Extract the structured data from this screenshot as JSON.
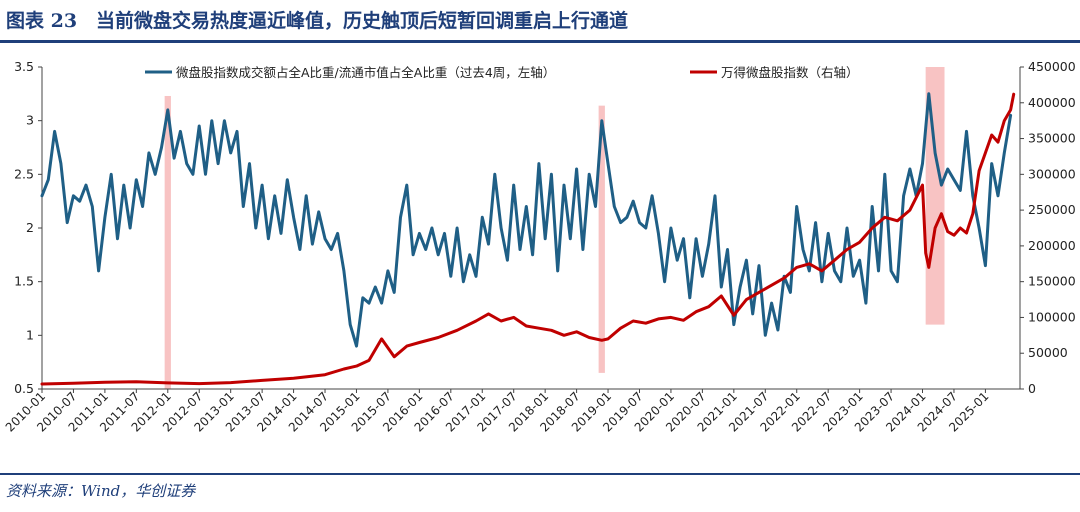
{
  "header": {
    "title": "图表 23　当前微盘交易热度逼近峰值，历史触顶后短暂回调重启上行通道"
  },
  "footer": {
    "source": "资料来源：Wind，华创证券"
  },
  "chart_data": {
    "type": "line",
    "left_axis": {
      "min": 0.5,
      "max": 3.5,
      "ticks": [
        "0.5",
        "1",
        "1.5",
        "2",
        "2.5",
        "3",
        "3.5"
      ]
    },
    "right_axis": {
      "min": 0,
      "max": 450000,
      "ticks": [
        "0",
        "50000",
        "100000",
        "150000",
        "200000",
        "250000",
        "300000",
        "350000",
        "400000",
        "450000"
      ]
    },
    "x_ticks": [
      "2010-01",
      "2010-07",
      "2011-01",
      "2011-07",
      "2012-01",
      "2012-07",
      "2013-01",
      "2013-07",
      "2014-01",
      "2014-07",
      "2015-01",
      "2015-07",
      "2016-01",
      "2016-07",
      "2017-01",
      "2017-07",
      "2018-01",
      "2018-07",
      "2019-01",
      "2019-07",
      "2020-01",
      "2020-07",
      "2021-01",
      "2021-07",
      "2022-01",
      "2022-07",
      "2023-01",
      "2023-07",
      "2024-01",
      "2024-07",
      "2025-01"
    ],
    "series": [
      {
        "name": "微盘股指数成交额占全A比重/流通市值占全A比重（过去4周，左轴）",
        "axis": "left",
        "color": "#1f5f86",
        "points": [
          [
            2010.0,
            2.3
          ],
          [
            2010.1,
            2.45
          ],
          [
            2010.2,
            2.9
          ],
          [
            2010.3,
            2.6
          ],
          [
            2010.4,
            2.05
          ],
          [
            2010.5,
            2.3
          ],
          [
            2010.6,
            2.25
          ],
          [
            2010.7,
            2.4
          ],
          [
            2010.8,
            2.2
          ],
          [
            2010.9,
            1.6
          ],
          [
            2011.0,
            2.1
          ],
          [
            2011.1,
            2.5
          ],
          [
            2011.2,
            1.9
          ],
          [
            2011.3,
            2.4
          ],
          [
            2011.4,
            2.0
          ],
          [
            2011.5,
            2.45
          ],
          [
            2011.6,
            2.2
          ],
          [
            2011.7,
            2.7
          ],
          [
            2011.8,
            2.5
          ],
          [
            2011.9,
            2.75
          ],
          [
            2012.0,
            3.1
          ],
          [
            2012.1,
            2.65
          ],
          [
            2012.2,
            2.9
          ],
          [
            2012.3,
            2.6
          ],
          [
            2012.4,
            2.5
          ],
          [
            2012.5,
            2.95
          ],
          [
            2012.6,
            2.5
          ],
          [
            2012.7,
            3.0
          ],
          [
            2012.8,
            2.6
          ],
          [
            2012.9,
            3.0
          ],
          [
            2013.0,
            2.7
          ],
          [
            2013.1,
            2.9
          ],
          [
            2013.2,
            2.2
          ],
          [
            2013.3,
            2.6
          ],
          [
            2013.4,
            2.0
          ],
          [
            2013.5,
            2.4
          ],
          [
            2013.6,
            1.9
          ],
          [
            2013.7,
            2.3
          ],
          [
            2013.8,
            1.95
          ],
          [
            2013.9,
            2.45
          ],
          [
            2014.0,
            2.1
          ],
          [
            2014.1,
            1.8
          ],
          [
            2014.2,
            2.3
          ],
          [
            2014.3,
            1.85
          ],
          [
            2014.4,
            2.15
          ],
          [
            2014.5,
            1.9
          ],
          [
            2014.6,
            1.8
          ],
          [
            2014.7,
            1.95
          ],
          [
            2014.8,
            1.6
          ],
          [
            2014.9,
            1.1
          ],
          [
            2015.0,
            0.9
          ],
          [
            2015.1,
            1.35
          ],
          [
            2015.2,
            1.3
          ],
          [
            2015.3,
            1.45
          ],
          [
            2015.4,
            1.3
          ],
          [
            2015.5,
            1.6
          ],
          [
            2015.6,
            1.4
          ],
          [
            2015.7,
            2.1
          ],
          [
            2015.8,
            2.4
          ],
          [
            2015.9,
            1.75
          ],
          [
            2016.0,
            1.95
          ],
          [
            2016.1,
            1.8
          ],
          [
            2016.2,
            2.0
          ],
          [
            2016.3,
            1.75
          ],
          [
            2016.4,
            1.95
          ],
          [
            2016.5,
            1.55
          ],
          [
            2016.6,
            2.0
          ],
          [
            2016.7,
            1.5
          ],
          [
            2016.8,
            1.75
          ],
          [
            2016.9,
            1.55
          ],
          [
            2017.0,
            2.1
          ],
          [
            2017.1,
            1.85
          ],
          [
            2017.2,
            2.5
          ],
          [
            2017.3,
            2.0
          ],
          [
            2017.4,
            1.7
          ],
          [
            2017.5,
            2.4
          ],
          [
            2017.6,
            1.8
          ],
          [
            2017.7,
            2.2
          ],
          [
            2017.8,
            1.75
          ],
          [
            2017.9,
            2.6
          ],
          [
            2018.0,
            1.9
          ],
          [
            2018.1,
            2.5
          ],
          [
            2018.2,
            1.6
          ],
          [
            2018.3,
            2.4
          ],
          [
            2018.4,
            1.9
          ],
          [
            2018.5,
            2.55
          ],
          [
            2018.6,
            1.8
          ],
          [
            2018.7,
            2.5
          ],
          [
            2018.8,
            2.2
          ],
          [
            2018.9,
            3.0
          ],
          [
            2019.0,
            2.6
          ],
          [
            2019.1,
            2.2
          ],
          [
            2019.2,
            2.05
          ],
          [
            2019.3,
            2.1
          ],
          [
            2019.4,
            2.25
          ],
          [
            2019.5,
            2.05
          ],
          [
            2019.6,
            2.0
          ],
          [
            2019.7,
            2.3
          ],
          [
            2019.8,
            1.95
          ],
          [
            2019.9,
            1.5
          ],
          [
            2020.0,
            2.0
          ],
          [
            2020.1,
            1.7
          ],
          [
            2020.2,
            1.9
          ],
          [
            2020.3,
            1.35
          ],
          [
            2020.4,
            1.9
          ],
          [
            2020.5,
            1.55
          ],
          [
            2020.6,
            1.85
          ],
          [
            2020.7,
            2.3
          ],
          [
            2020.8,
            1.45
          ],
          [
            2020.9,
            1.8
          ],
          [
            2021.0,
            1.1
          ],
          [
            2021.1,
            1.45
          ],
          [
            2021.2,
            1.7
          ],
          [
            2021.3,
            1.2
          ],
          [
            2021.4,
            1.65
          ],
          [
            2021.5,
            1.0
          ],
          [
            2021.6,
            1.3
          ],
          [
            2021.7,
            1.05
          ],
          [
            2021.8,
            1.55
          ],
          [
            2021.9,
            1.4
          ],
          [
            2022.0,
            2.2
          ],
          [
            2022.1,
            1.8
          ],
          [
            2022.2,
            1.6
          ],
          [
            2022.3,
            2.05
          ],
          [
            2022.4,
            1.5
          ],
          [
            2022.5,
            1.95
          ],
          [
            2022.6,
            1.6
          ],
          [
            2022.7,
            1.5
          ],
          [
            2022.8,
            2.0
          ],
          [
            2022.9,
            1.55
          ],
          [
            2023.0,
            1.7
          ],
          [
            2023.1,
            1.3
          ],
          [
            2023.2,
            2.2
          ],
          [
            2023.3,
            1.6
          ],
          [
            2023.4,
            2.5
          ],
          [
            2023.5,
            1.6
          ],
          [
            2023.6,
            1.5
          ],
          [
            2023.7,
            2.3
          ],
          [
            2023.8,
            2.55
          ],
          [
            2023.9,
            2.3
          ],
          [
            2024.0,
            2.6
          ],
          [
            2024.1,
            3.25
          ],
          [
            2024.2,
            2.7
          ],
          [
            2024.3,
            2.4
          ],
          [
            2024.4,
            2.55
          ],
          [
            2024.5,
            2.45
          ],
          [
            2024.6,
            2.35
          ],
          [
            2024.7,
            2.9
          ],
          [
            2024.8,
            2.3
          ],
          [
            2024.9,
            2.0
          ],
          [
            2025.0,
            1.65
          ],
          [
            2025.1,
            2.6
          ],
          [
            2025.2,
            2.3
          ],
          [
            2025.3,
            2.7
          ],
          [
            2025.4,
            3.05
          ]
        ]
      },
      {
        "name": "万得微盘股指数（右轴）",
        "axis": "right",
        "color": "#c00000",
        "points": [
          [
            2010.0,
            7000
          ],
          [
            2010.5,
            8000
          ],
          [
            2011.0,
            9500
          ],
          [
            2011.5,
            10000
          ],
          [
            2012.0,
            8500
          ],
          [
            2012.5,
            7500
          ],
          [
            2013.0,
            9000
          ],
          [
            2013.5,
            12000
          ],
          [
            2014.0,
            15000
          ],
          [
            2014.5,
            20000
          ],
          [
            2014.8,
            28000
          ],
          [
            2015.0,
            32000
          ],
          [
            2015.2,
            40000
          ],
          [
            2015.4,
            70000
          ],
          [
            2015.6,
            45000
          ],
          [
            2015.8,
            60000
          ],
          [
            2016.0,
            65000
          ],
          [
            2016.3,
            72000
          ],
          [
            2016.6,
            82000
          ],
          [
            2016.9,
            95000
          ],
          [
            2017.1,
            105000
          ],
          [
            2017.3,
            95000
          ],
          [
            2017.5,
            100000
          ],
          [
            2017.7,
            88000
          ],
          [
            2017.9,
            85000
          ],
          [
            2018.1,
            82000
          ],
          [
            2018.3,
            75000
          ],
          [
            2018.5,
            80000
          ],
          [
            2018.7,
            72000
          ],
          [
            2018.9,
            68000
          ],
          [
            2019.0,
            70000
          ],
          [
            2019.2,
            85000
          ],
          [
            2019.4,
            95000
          ],
          [
            2019.6,
            92000
          ],
          [
            2019.8,
            98000
          ],
          [
            2020.0,
            100000
          ],
          [
            2020.2,
            96000
          ],
          [
            2020.4,
            108000
          ],
          [
            2020.6,
            115000
          ],
          [
            2020.8,
            130000
          ],
          [
            2021.0,
            103000
          ],
          [
            2021.2,
            125000
          ],
          [
            2021.5,
            140000
          ],
          [
            2021.8,
            155000
          ],
          [
            2022.0,
            170000
          ],
          [
            2022.2,
            175000
          ],
          [
            2022.4,
            165000
          ],
          [
            2022.6,
            180000
          ],
          [
            2022.8,
            195000
          ],
          [
            2023.0,
            205000
          ],
          [
            2023.2,
            225000
          ],
          [
            2023.4,
            240000
          ],
          [
            2023.6,
            235000
          ],
          [
            2023.8,
            250000
          ],
          [
            2024.0,
            285000
          ],
          [
            2024.05,
            190000
          ],
          [
            2024.1,
            170000
          ],
          [
            2024.2,
            225000
          ],
          [
            2024.3,
            245000
          ],
          [
            2024.4,
            220000
          ],
          [
            2024.5,
            215000
          ],
          [
            2024.6,
            225000
          ],
          [
            2024.7,
            218000
          ],
          [
            2024.8,
            245000
          ],
          [
            2024.9,
            305000
          ],
          [
            2025.0,
            330000
          ],
          [
            2025.1,
            355000
          ],
          [
            2025.2,
            345000
          ],
          [
            2025.3,
            375000
          ],
          [
            2025.4,
            390000
          ],
          [
            2025.45,
            412000
          ]
        ]
      }
    ],
    "highlights": [
      {
        "from": 2011.95,
        "to": 2012.05,
        "axis": "left",
        "top": 3.23,
        "bottom": 0.5
      },
      {
        "from": 2018.85,
        "to": 2018.95,
        "axis": "left",
        "top": 3.14,
        "bottom": 0.65
      },
      {
        "from": 2024.05,
        "to": 2024.35,
        "axis": "left",
        "top": 3.5,
        "bottom": 1.1
      }
    ]
  }
}
